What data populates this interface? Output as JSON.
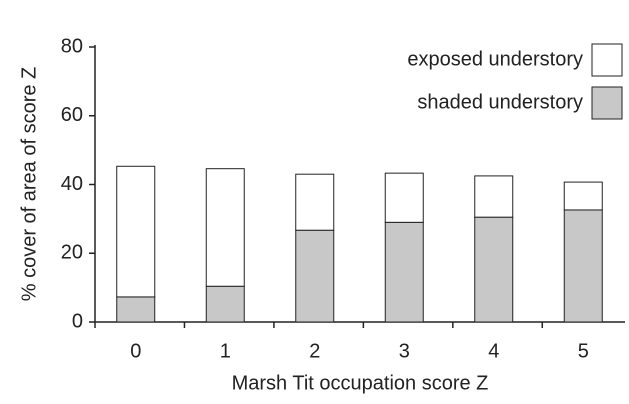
{
  "chart_data": {
    "type": "stacked_bar",
    "categories": [
      "0",
      "1",
      "2",
      "3",
      "4",
      "5"
    ],
    "series": [
      {
        "name": "shaded understory",
        "color": "#c8c8c8",
        "values": [
          7.3,
          10.4,
          26.7,
          29,
          30.5,
          32.6
        ]
      },
      {
        "name": "exposed understory",
        "color": "#ffffff",
        "values": [
          38,
          34.2,
          16.3,
          14.3,
          12,
          8.1
        ]
      }
    ],
    "ylim": [
      0,
      80
    ],
    "yticks": [
      0,
      20,
      40,
      60,
      80
    ],
    "y_label": "% cover of area of score Z",
    "x_label": "Marsh Tit occupation score Z",
    "legend": "top-right"
  }
}
